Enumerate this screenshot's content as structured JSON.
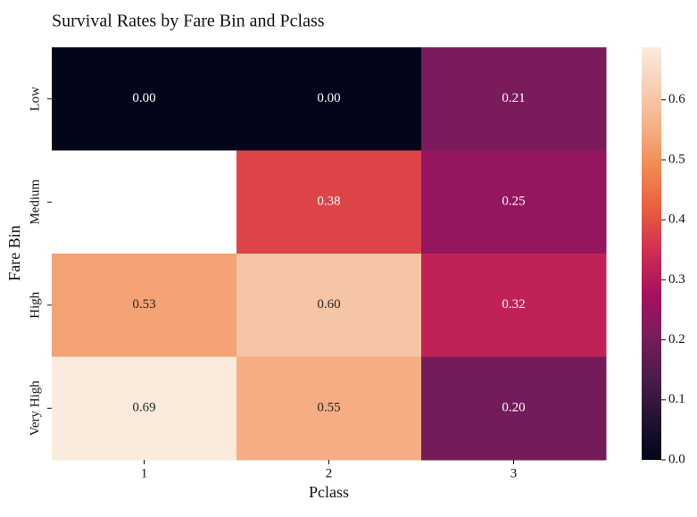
{
  "chart_data": {
    "type": "heatmap",
    "title": "Survival Rates by Fare Bin and Pclass",
    "xlabel": "Pclass",
    "ylabel": "Fare Bin",
    "x_categories": [
      "1",
      "2",
      "3"
    ],
    "y_categories": [
      "Low",
      "Medium",
      "High",
      "Very High"
    ],
    "values": [
      [
        0.0,
        0.0,
        0.21
      ],
      [
        null,
        0.38,
        0.25
      ],
      [
        0.53,
        0.6,
        0.32
      ],
      [
        0.69,
        0.55,
        0.2
      ]
    ],
    "cell_labels": [
      [
        "0.00",
        "0.00",
        "0.21"
      ],
      [
        "",
        "0.38",
        "0.25"
      ],
      [
        "0.53",
        "0.60",
        "0.32"
      ],
      [
        "0.69",
        "0.55",
        "0.20"
      ]
    ],
    "colormap": "rocket",
    "vmin": 0.0,
    "vmax": 0.6875,
    "colorbar_ticks": [
      0.0,
      0.1,
      0.2,
      0.3,
      0.4,
      0.5,
      0.6
    ],
    "colorbar_tick_labels": [
      "0.0",
      "0.1",
      "0.2",
      "0.3",
      "0.4",
      "0.5",
      "0.6"
    ],
    "missing_color": "#ffffff",
    "colormap_stops": [
      [
        0.0,
        "#03051a"
      ],
      [
        0.1,
        "#221331"
      ],
      [
        0.2,
        "#4c1d4b"
      ],
      [
        0.3,
        "#781c5b"
      ],
      [
        0.4,
        "#a6115f"
      ],
      [
        0.5,
        "#ce2b53"
      ],
      [
        0.6,
        "#e85a3f"
      ],
      [
        0.7,
        "#f1864e"
      ],
      [
        0.8,
        "#f6ad84"
      ],
      [
        0.9,
        "#f6ceb2"
      ],
      [
        1.0,
        "#faebdd"
      ]
    ]
  }
}
